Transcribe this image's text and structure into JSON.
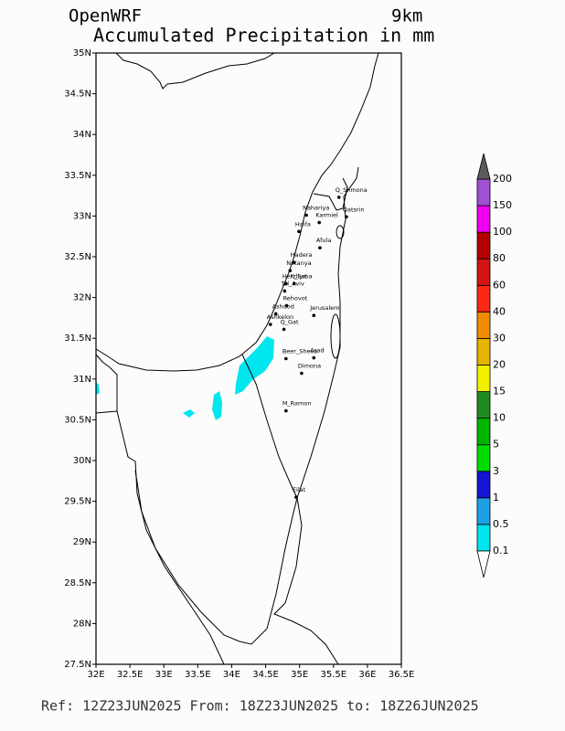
{
  "header": {
    "model": "OpenWRF",
    "resolution": "9km",
    "title": "Accumulated Precipitation in mm"
  },
  "map": {
    "lon_range": [
      32,
      36.5
    ],
    "lat_range": [
      27.5,
      35
    ],
    "lon_ticks": [
      {
        "value": 32,
        "label": "32E"
      },
      {
        "value": 32.5,
        "label": "32.5E"
      },
      {
        "value": 33,
        "label": "33E"
      },
      {
        "value": 33.5,
        "label": "33.5E"
      },
      {
        "value": 34,
        "label": "34E"
      },
      {
        "value": 34.5,
        "label": "34.5E"
      },
      {
        "value": 35,
        "label": "35E"
      },
      {
        "value": 35.5,
        "label": "35.5E"
      },
      {
        "value": 36,
        "label": "36E"
      },
      {
        "value": 36.5,
        "label": "36.5E"
      }
    ],
    "lat_ticks": [
      {
        "value": 35,
        "label": "35N"
      },
      {
        "value": 34.5,
        "label": "34.5N"
      },
      {
        "value": 34,
        "label": "34N"
      },
      {
        "value": 33.5,
        "label": "33.5N"
      },
      {
        "value": 33,
        "label": "33N"
      },
      {
        "value": 32.5,
        "label": "32.5N"
      },
      {
        "value": 32,
        "label": "32N"
      },
      {
        "value": 31.5,
        "label": "31.5N"
      },
      {
        "value": 31,
        "label": "31N"
      },
      {
        "value": 30.5,
        "label": "30.5N"
      },
      {
        "value": 30,
        "label": "30N"
      },
      {
        "value": 29.5,
        "label": "29.5N"
      },
      {
        "value": 29,
        "label": "29N"
      },
      {
        "value": 28.5,
        "label": "28.5N"
      },
      {
        "value": 28,
        "label": "28N"
      },
      {
        "value": 27.5,
        "label": "27.5N"
      }
    ],
    "cities": [
      {
        "name": "Q_Shmona",
        "lon": 35.58,
        "lat": 33.23
      },
      {
        "name": "Nahariya",
        "lon": 35.1,
        "lat": 33.01
      },
      {
        "name": "Qatsrin",
        "lon": 35.69,
        "lat": 32.99
      },
      {
        "name": "Karmiel",
        "lon": 35.29,
        "lat": 32.92
      },
      {
        "name": "Haifa",
        "lon": 34.99,
        "lat": 32.81
      },
      {
        "name": "Afula",
        "lon": 35.3,
        "lat": 32.61
      },
      {
        "name": "Hadera",
        "lon": 34.92,
        "lat": 32.43
      },
      {
        "name": "Netanya",
        "lon": 34.86,
        "lat": 32.33
      },
      {
        "name": "Herzliya",
        "lon": 34.8,
        "lat": 32.17
      },
      {
        "name": "K_Saba",
        "lon": 34.92,
        "lat": 32.17
      },
      {
        "name": "Tel_Aviv",
        "lon": 34.78,
        "lat": 32.08
      },
      {
        "name": "Rehovot",
        "lon": 34.81,
        "lat": 31.9
      },
      {
        "name": "Ashdod",
        "lon": 34.65,
        "lat": 31.8
      },
      {
        "name": "Jerusalem",
        "lon": 35.21,
        "lat": 31.78
      },
      {
        "name": "Ashkelon",
        "lon": 34.57,
        "lat": 31.67
      },
      {
        "name": "Q_Gat",
        "lon": 34.77,
        "lat": 31.61
      },
      {
        "name": "Beer_Sheva",
        "lon": 34.8,
        "lat": 31.25
      },
      {
        "name": "Arad",
        "lon": 35.21,
        "lat": 31.26
      },
      {
        "name": "Dimona",
        "lon": 35.03,
        "lat": 31.07
      },
      {
        "name": "M_Ramon",
        "lon": 34.8,
        "lat": 30.61
      },
      {
        "name": "Eilat",
        "lon": 34.95,
        "lat": 29.55
      }
    ]
  },
  "colorbar": {
    "levels": [
      0.1,
      0.5,
      1,
      3,
      5,
      10,
      15,
      20,
      30,
      40,
      60,
      80,
      100,
      150,
      200
    ],
    "colors": [
      "#00e6ee",
      "#1ea0e6",
      "#1414d2",
      "#00dc00",
      "#00b400",
      "#1e8c1e",
      "#f0f000",
      "#e6b400",
      "#f08c00",
      "#fa2814",
      "#d21414",
      "#b40000",
      "#f000f0",
      "#a050d2"
    ],
    "over_color": "#5a5a5a",
    "under_color": "#ffffff"
  },
  "footer": "Ref: 12Z23JUN2025  From: 18Z23JUN2025  to: 18Z26JUN2025"
}
